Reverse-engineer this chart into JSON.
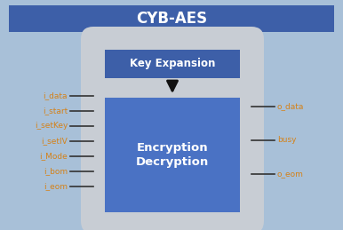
{
  "title": "CYB-AES",
  "title_bg": "#3d5fa8",
  "title_color": "#ffffff",
  "bg_color": "#a8c0d8",
  "outer_box_color": "#c8cdd4",
  "inner_box_key_color": "#3d5fa8",
  "inner_box_enc_color": "#4a72c4",
  "left_labels": [
    "i_data",
    "i_start",
    "i_setKey",
    "i_setIV",
    "i_Mode",
    "i_bom",
    "i_eom"
  ],
  "right_labels": [
    "o_data",
    "busy",
    "o_eom"
  ],
  "label_color": "#d4821a",
  "key_expansion_text": "Key Expansion",
  "enc_dec_text1": "Encryption",
  "enc_dec_text2": "Decryption",
  "inner_text_color": "#ffffff",
  "figw": 3.86,
  "figh": 2.59,
  "dpi": 100
}
